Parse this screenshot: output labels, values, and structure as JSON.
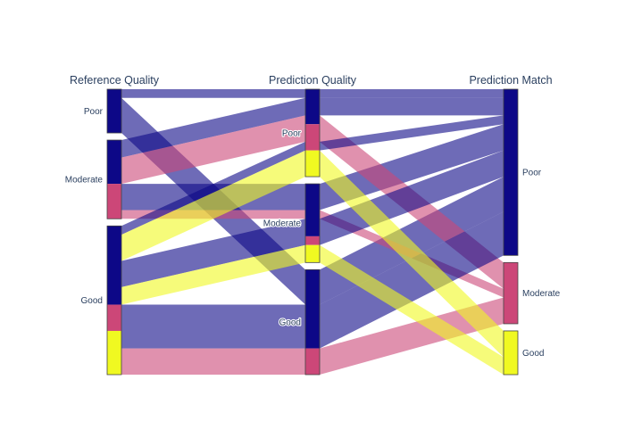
{
  "chart_data": {
    "type": "parallel_categories",
    "dimensions": [
      {
        "label": "Reference Quality",
        "categories": [
          "Poor",
          "Moderate",
          "Good"
        ]
      },
      {
        "label": "Prediction Quality",
        "categories": [
          "Poor",
          "Moderate",
          "Good"
        ]
      },
      {
        "label": "Prediction Match",
        "categories": [
          "Poor",
          "Moderate",
          "Good"
        ]
      }
    ],
    "color_scale": {
      "Poor": "#0d0887",
      "Moderate": "#cc4778",
      "Good": "#f0f921"
    },
    "link_opacity": 0.6,
    "total_count": 31,
    "paths": [
      {
        "ref": "Poor",
        "pred": "Poor",
        "match": "Poor",
        "color": "Poor",
        "count": 1
      },
      {
        "ref": "Poor",
        "pred": "Good",
        "match": "Poor",
        "color": "Poor",
        "count": 4
      },
      {
        "ref": "Moderate",
        "pred": "Poor",
        "match": "Poor",
        "color": "Poor",
        "count": 2
      },
      {
        "ref": "Moderate",
        "pred": "Moderate",
        "match": "Poor",
        "color": "Poor",
        "count": 3
      },
      {
        "ref": "Moderate",
        "pred": "Poor",
        "match": "Moderate",
        "color": "Moderate",
        "count": 3
      },
      {
        "ref": "Moderate",
        "pred": "Moderate",
        "match": "Moderate",
        "color": "Moderate",
        "count": 1
      },
      {
        "ref": "Good",
        "pred": "Poor",
        "match": "Poor",
        "color": "Poor",
        "count": 1
      },
      {
        "ref": "Good",
        "pred": "Moderate",
        "match": "Poor",
        "color": "Poor",
        "count": 3
      },
      {
        "ref": "Good",
        "pred": "Good",
        "match": "Poor",
        "color": "Poor",
        "count": 5
      },
      {
        "ref": "Good",
        "pred": "Good",
        "match": "Moderate",
        "color": "Moderate",
        "count": 3
      },
      {
        "ref": "Good",
        "pred": "Poor",
        "match": "Good",
        "color": "Good",
        "count": 3
      },
      {
        "ref": "Good",
        "pred": "Moderate",
        "match": "Good",
        "color": "Good",
        "count": 2
      }
    ]
  }
}
